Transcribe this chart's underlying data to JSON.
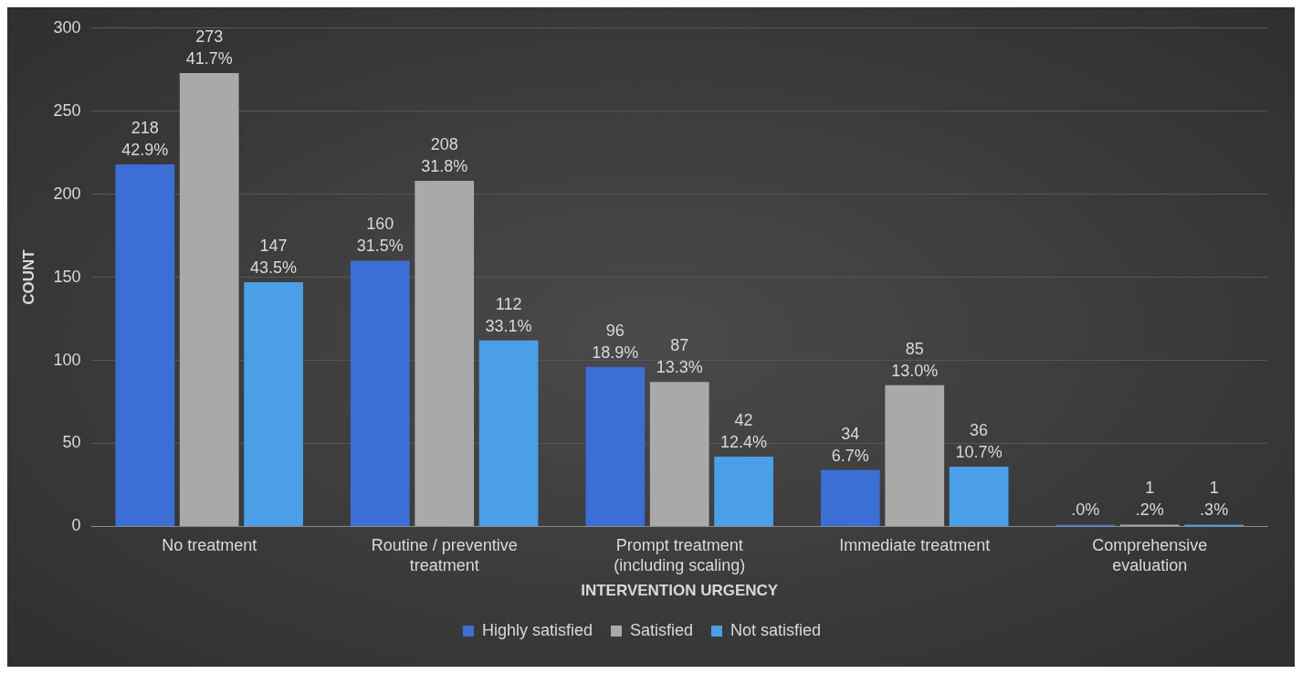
{
  "chart_data": {
    "type": "bar",
    "xlabel": "INTERVENTION URGENCY",
    "ylabel": "COUNT",
    "categories": [
      "No treatment",
      "Routine / preventive treatment",
      "Prompt treatment (including scaling)",
      "Immediate treatment",
      "Comprehensive evaluation"
    ],
    "series": [
      {
        "name": "Highly satisfied",
        "color": "#3b6fd6",
        "values": [
          218,
          160,
          96,
          34,
          0
        ],
        "value_labels": [
          "218\n42.9%",
          "160\n31.5%",
          "96\n18.9%",
          "34\n6.7%",
          ".0%"
        ]
      },
      {
        "name": "Satisfied",
        "color": "#a9a9a9",
        "values": [
          273,
          208,
          87,
          85,
          1
        ],
        "value_labels": [
          "273\n41.7%",
          "208\n31.8%",
          "87\n13.3%",
          "85\n13.0%",
          "1\n.2%"
        ]
      },
      {
        "name": "Not satisfied",
        "color": "#4a9fe6",
        "values": [
          147,
          112,
          42,
          36,
          1
        ],
        "value_labels": [
          "147\n43.5%",
          "112\n33.1%",
          "42\n12.4%",
          "36\n10.7%",
          "1\n.3%"
        ]
      }
    ],
    "ylim": [
      0,
      300
    ],
    "yticks": [
      0,
      50,
      100,
      150,
      200,
      250,
      300
    ],
    "grid": "y",
    "legend": "bottom"
  }
}
